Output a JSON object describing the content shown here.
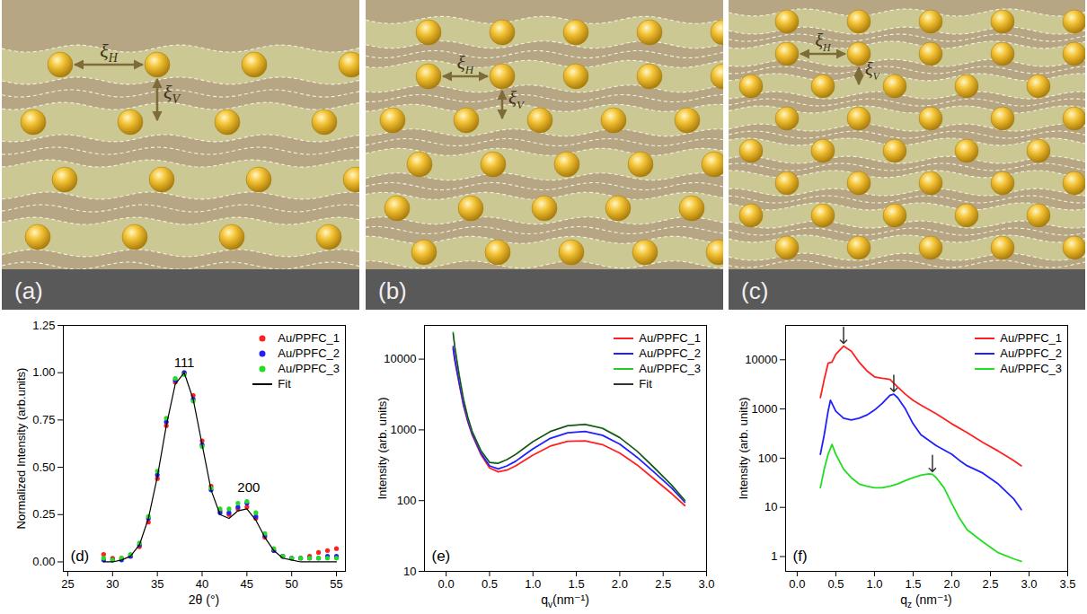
{
  "diagrams": [
    {
      "panel_label": "(a)",
      "horizontal_label": {
        "symbol": "ξ",
        "subscript": "H"
      },
      "vertical_label": {
        "symbol": "ξ",
        "subscript": "V"
      }
    },
    {
      "panel_label": "(b)",
      "horizontal_label": {
        "symbol": "ξ",
        "subscript": "H"
      },
      "vertical_label": {
        "symbol": "ξ",
        "subscript": "V"
      }
    },
    {
      "panel_label": "(c)",
      "horizontal_label": {
        "symbol": "ξ",
        "subscript": "H"
      },
      "vertical_label": {
        "symbol": "ξ",
        "subscript": "V"
      }
    }
  ],
  "chart_data": [
    {
      "type": "scatter",
      "panel_label": "(d)",
      "x_label": "2θ (°)",
      "y_label": "Normalized Intensity (arb.units)",
      "xlim": [
        24.5,
        56
      ],
      "xticks": [
        25,
        30,
        35,
        40,
        45,
        50,
        55
      ],
      "ylim": [
        -0.05,
        1.25
      ],
      "yticks": [
        {
          "value": 0,
          "label": "0.00"
        },
        0.25,
        {
          "value": 0.5,
          "label": "0.50"
        },
        0.75,
        {
          "value": 1,
          "label": "1.00"
        },
        1.25
      ],
      "legend": "top-right",
      "annotations": [
        {
          "text": "111",
          "x": 38,
          "y": 1.03
        },
        {
          "text": "200",
          "x": 45.2,
          "y": 0.37
        }
      ],
      "x": [
        29,
        30,
        31,
        32,
        33,
        34,
        35,
        36,
        37,
        38,
        39,
        40,
        41,
        42,
        43,
        44,
        45,
        46,
        47,
        48,
        49,
        50,
        51,
        52,
        53,
        54,
        55
      ],
      "series": [
        {
          "name": "Au/PPFC_1",
          "color": "#ff2020",
          "marker": "circle",
          "values": [
            0.04,
            0.02,
            0.02,
            0.03,
            0.08,
            0.21,
            0.44,
            0.72,
            0.95,
            1.0,
            0.88,
            0.64,
            0.4,
            0.27,
            0.25,
            0.28,
            0.29,
            0.23,
            0.13,
            0.06,
            0.03,
            0.02,
            0.02,
            0.03,
            0.05,
            0.06,
            0.07
          ]
        },
        {
          "name": "Au/PPFC_2",
          "color": "#2020ff",
          "marker": "circle",
          "values": [
            0.01,
            0.01,
            0.01,
            0.03,
            0.09,
            0.23,
            0.46,
            0.74,
            0.96,
            1.0,
            0.86,
            0.62,
            0.38,
            0.26,
            0.26,
            0.29,
            0.31,
            0.24,
            0.14,
            0.06,
            0.03,
            0.02,
            0.02,
            0.02,
            0.02,
            0.03,
            0.03
          ]
        },
        {
          "name": "Au/PPFC_3",
          "color": "#22dd22",
          "marker": "circle",
          "values": [
            0.02,
            0.01,
            0.02,
            0.04,
            0.1,
            0.24,
            0.48,
            0.76,
            0.97,
            0.99,
            0.85,
            0.61,
            0.39,
            0.28,
            0.28,
            0.31,
            0.32,
            0.26,
            0.15,
            0.07,
            0.03,
            0.02,
            0.02,
            0.02,
            0.02,
            0.02,
            0.02
          ]
        },
        {
          "name": "Fit",
          "color": "#000000",
          "type": "line",
          "values": [
            0.0,
            0.0,
            0.01,
            0.03,
            0.09,
            0.23,
            0.45,
            0.72,
            0.94,
            1.0,
            0.86,
            0.62,
            0.38,
            0.25,
            0.23,
            0.27,
            0.28,
            0.22,
            0.13,
            0.06,
            0.02,
            0.01,
            0.0,
            0.0,
            0.0,
            0.0,
            0.0
          ]
        }
      ]
    },
    {
      "type": "line",
      "panel_label": "(e)",
      "log": "y",
      "x_label": {
        "text": "q",
        "subscript": "v",
        "rest": "(nm⁻¹)"
      },
      "y_label": "Intensity (arb. units)",
      "xlim": [
        -0.25,
        3.0
      ],
      "xticks": [
        {
          "value": 0,
          "label": "0.0"
        },
        0.5,
        {
          "value": 1,
          "label": "1.0"
        },
        1.5,
        {
          "value": 2,
          "label": "2.0"
        },
        2.5,
        {
          "value": 3,
          "label": "3.0"
        }
      ],
      "ylim": [
        10,
        30000
      ],
      "yticks": [
        10,
        100,
        1000,
        10000
      ],
      "legend": "top-right",
      "x": [
        0.08,
        0.1,
        0.15,
        0.2,
        0.25,
        0.3,
        0.4,
        0.5,
        0.6,
        0.7,
        0.8,
        1.0,
        1.2,
        1.4,
        1.6,
        1.8,
        2.0,
        2.2,
        2.4,
        2.6,
        2.75
      ],
      "series": [
        {
          "name": "Au/PPFC_1",
          "color": "#ff2020",
          "values": [
            14000,
            9500,
            4500,
            2200,
            1300,
            850,
            450,
            290,
            255,
            270,
            310,
            440,
            590,
            690,
            700,
            620,
            470,
            320,
            200,
            125,
            85
          ]
        },
        {
          "name": "Au/PPFC_2",
          "color": "#2020ff",
          "values": [
            15000,
            10000,
            4700,
            2300,
            1350,
            880,
            470,
            310,
            280,
            310,
            360,
            540,
            760,
            910,
            950,
            840,
            630,
            410,
            250,
            150,
            95
          ]
        },
        {
          "name": "Au/PPFC_3",
          "color": "#22cc22",
          "values": [
            24000,
            15000,
            6000,
            2700,
            1500,
            950,
            510,
            350,
            340,
            380,
            450,
            680,
            950,
            1150,
            1200,
            1060,
            780,
            500,
            290,
            165,
            100
          ]
        },
        {
          "name": "Fit",
          "color": "#333333",
          "values": [
            23000,
            14500,
            5900,
            2700,
            1500,
            950,
            510,
            345,
            335,
            380,
            450,
            680,
            950,
            1140,
            1190,
            1050,
            775,
            500,
            290,
            165,
            100
          ]
        }
      ]
    },
    {
      "type": "line",
      "panel_label": "(f)",
      "log": "y",
      "x_label": {
        "text": "q",
        "subscript": "z",
        "rest": " (nm⁻¹)"
      },
      "y_label": "Intensity (arb. units)",
      "xlim": [
        -0.15,
        3.5
      ],
      "xticks": [
        {
          "value": 0,
          "label": "0.0"
        },
        0.5,
        {
          "value": 1,
          "label": "1.0"
        },
        1.5,
        {
          "value": 2,
          "label": "2.0"
        },
        2.5,
        {
          "value": 3,
          "label": "3.0"
        },
        3.5
      ],
      "ylim": [
        0.5,
        50000
      ],
      "yticks": [
        1,
        10,
        100,
        1000,
        10000
      ],
      "legend": "top-right",
      "series": [
        {
          "name": "Au/PPFC_1",
          "color": "#ff2020",
          "x": [
            0.3,
            0.35,
            0.4,
            0.45,
            0.5,
            0.6,
            0.7,
            0.8,
            0.9,
            1.0,
            1.1,
            1.2,
            1.3,
            1.4,
            1.5,
            1.6,
            1.8,
            2.0,
            2.2,
            2.4,
            2.6,
            2.8,
            2.9
          ],
          "values": [
            1700,
            4000,
            8500,
            9000,
            13000,
            19000,
            15000,
            9000,
            6000,
            4500,
            4200,
            4000,
            2800,
            2000,
            1500,
            1200,
            800,
            500,
            330,
            210,
            140,
            90,
            70
          ],
          "peak": {
            "x": 0.6,
            "y": 19000
          }
        },
        {
          "name": "Au/PPFC_2",
          "color": "#2020ff",
          "x": [
            0.3,
            0.35,
            0.4,
            0.43,
            0.5,
            0.6,
            0.7,
            0.8,
            0.9,
            1.0,
            1.1,
            1.2,
            1.25,
            1.3,
            1.4,
            1.5,
            1.6,
            1.8,
            2.0,
            2.1,
            2.2,
            2.4,
            2.6,
            2.8,
            2.9
          ],
          "values": [
            120,
            300,
            900,
            1500,
            900,
            650,
            600,
            650,
            750,
            950,
            1300,
            1900,
            2000,
            1700,
            1000,
            500,
            300,
            180,
            120,
            90,
            70,
            50,
            30,
            15,
            9
          ],
          "peak": {
            "x": 1.25,
            "y": 2000
          }
        },
        {
          "name": "Au/PPFC_3",
          "color": "#22dd22",
          "x": [
            0.3,
            0.35,
            0.4,
            0.45,
            0.5,
            0.6,
            0.7,
            0.8,
            0.9,
            1.0,
            1.1,
            1.2,
            1.3,
            1.4,
            1.5,
            1.6,
            1.7,
            1.75,
            1.8,
            1.9,
            2.0,
            2.1,
            2.2,
            2.4,
            2.6,
            2.8,
            2.9
          ],
          "values": [
            25,
            60,
            120,
            190,
            120,
            60,
            40,
            30,
            27,
            25,
            25,
            27,
            30,
            35,
            40,
            45,
            48,
            47,
            40,
            25,
            12,
            6,
            3.5,
            2,
            1.2,
            0.9,
            0.8
          ],
          "peak": {
            "x": 1.75,
            "y": 47
          }
        }
      ]
    }
  ]
}
